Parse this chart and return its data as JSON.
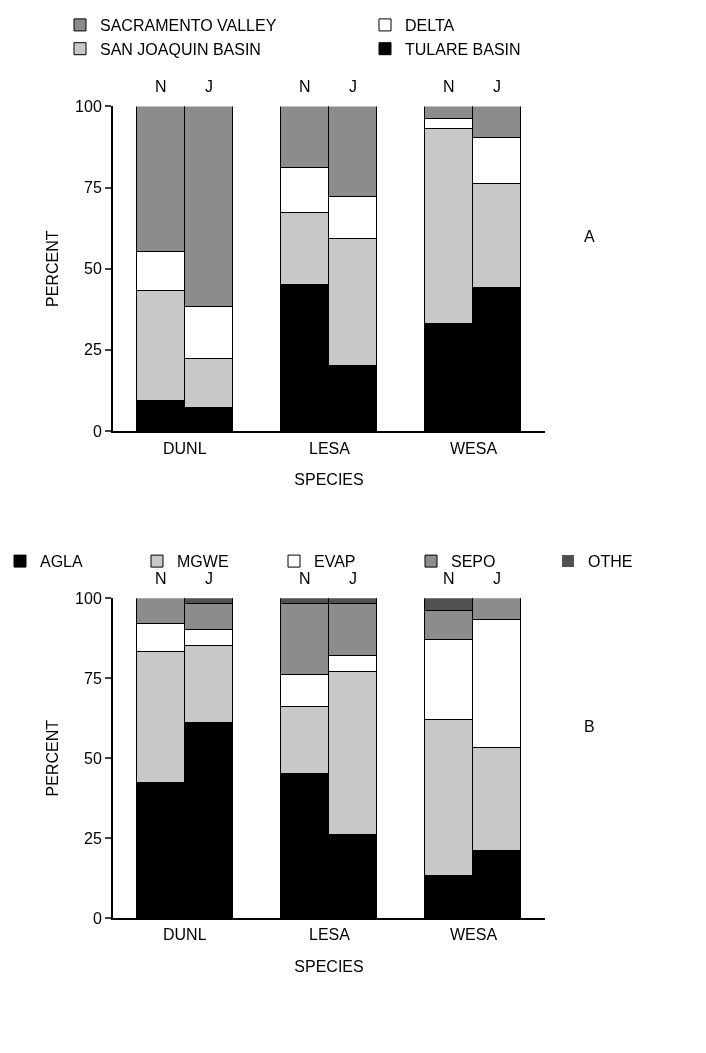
{
  "chart_data": [
    {
      "type": "bar",
      "stacked": true,
      "categories": [
        "N",
        "J",
        "N",
        "J",
        "N",
        "J"
      ],
      "xlabel": "SPECIES",
      "ylabel": "PERCENT",
      "ylim": [
        0,
        100
      ],
      "yticks": [
        0,
        25,
        50,
        75,
        100
      ],
      "legend": "top",
      "annotations": [
        "DUNL",
        "LESA",
        "WESA",
        "A"
      ],
      "series": [
        {
          "name": "TULARE BASIN",
          "color": "#000000",
          "values": [
            9,
            7,
            45,
            20,
            33,
            44
          ]
        },
        {
          "name": "SAN JOAQUIN BASIN",
          "color": "#c8c8c8",
          "values": [
            34,
            15,
            22,
            39,
            60,
            32
          ]
        },
        {
          "name": "DELTA",
          "color": "#ffffff",
          "values": [
            12,
            16,
            14,
            13,
            3,
            14
          ]
        },
        {
          "name": "SACRAMENTO VALLEY",
          "color": "#8c8c8c",
          "values": [
            45,
            62,
            19,
            28,
            4,
            10
          ]
        }
      ]
    },
    {
      "type": "bar",
      "stacked": true,
      "categories": [
        "N",
        "J",
        "N",
        "J",
        "N",
        "J"
      ],
      "xlabel": "SPECIES",
      "ylabel": "PERCENT",
      "ylim": [
        0,
        100
      ],
      "yticks": [
        0,
        25,
        50,
        75,
        100
      ],
      "legend": "top",
      "annotations": [
        "DUNL",
        "LESA",
        "WESA",
        "B"
      ],
      "series": [
        {
          "name": "AGLA",
          "color": "#000000",
          "values": [
            42,
            61,
            45,
            26,
            13,
            21
          ]
        },
        {
          "name": "MGWE",
          "color": "#c8c8c8",
          "values": [
            41,
            24,
            21,
            51,
            49,
            32
          ]
        },
        {
          "name": "EVAP",
          "color": "#ffffff",
          "values": [
            9,
            5,
            10,
            5,
            25,
            40
          ]
        },
        {
          "name": "SEPO",
          "color": "#8c8c8c",
          "values": [
            8,
            8,
            22,
            16,
            9,
            7
          ]
        },
        {
          "name": "OTHE",
          "color": "#505050",
          "values": [
            0,
            2,
            2,
            2,
            4,
            0
          ]
        }
      ]
    }
  ]
}
